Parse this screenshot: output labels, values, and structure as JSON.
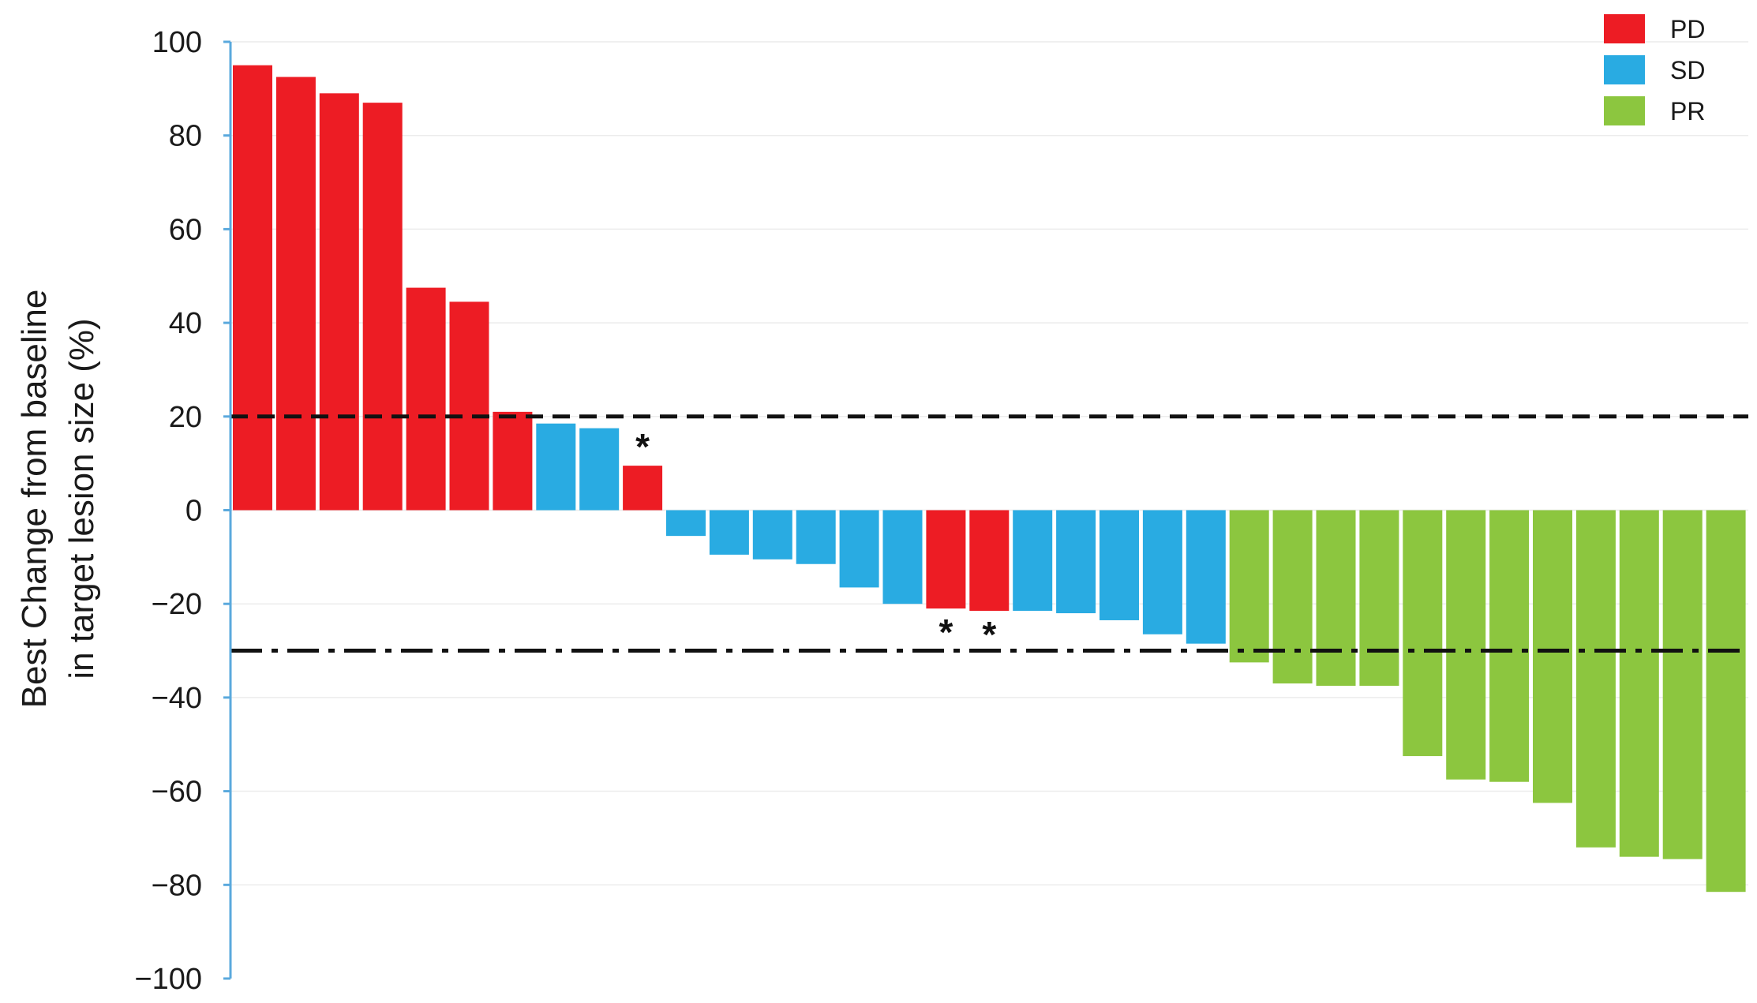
{
  "chart_data": {
    "type": "bar",
    "ylabel_lines": [
      "Best Change from baseline",
      "in target lesion size (%)"
    ],
    "ylim": [
      -100,
      100
    ],
    "yticks": [
      100,
      80,
      60,
      40,
      20,
      0,
      -20,
      -40,
      -60,
      -80,
      -100
    ],
    "ytick_labels": [
      "100",
      "80",
      "60",
      "40",
      "20",
      "0",
      "−20",
      "−40",
      "−60",
      "−80",
      "−100"
    ],
    "grid": true,
    "legend_position": "top-right",
    "legend": [
      {
        "key": "PD",
        "label": "PD",
        "color": "#ed1c24"
      },
      {
        "key": "SD",
        "label": "SD",
        "color": "#29abe2"
      },
      {
        "key": "PR",
        "label": "PR",
        "color": "#8cc63f"
      }
    ],
    "reference_lines": [
      {
        "value": 20,
        "style": "dashed"
      },
      {
        "value": -30,
        "style": "dash-dot"
      }
    ],
    "bars": [
      {
        "value": 95,
        "category": "PD"
      },
      {
        "value": 92.5,
        "category": "PD"
      },
      {
        "value": 89,
        "category": "PD"
      },
      {
        "value": 87,
        "category": "PD"
      },
      {
        "value": 47.5,
        "category": "PD"
      },
      {
        "value": 44.5,
        "category": "PD"
      },
      {
        "value": 21,
        "category": "PD"
      },
      {
        "value": 18.5,
        "category": "SD"
      },
      {
        "value": 17.5,
        "category": "SD"
      },
      {
        "value": 9.5,
        "category": "PD",
        "annotation": "*"
      },
      {
        "value": -5.5,
        "category": "SD"
      },
      {
        "value": -9.5,
        "category": "SD"
      },
      {
        "value": -10.5,
        "category": "SD"
      },
      {
        "value": -11.5,
        "category": "SD"
      },
      {
        "value": -16.5,
        "category": "SD"
      },
      {
        "value": -20,
        "category": "SD"
      },
      {
        "value": -21,
        "category": "PD",
        "annotation": "*"
      },
      {
        "value": -21.5,
        "category": "PD",
        "annotation": "*"
      },
      {
        "value": -21.5,
        "category": "SD"
      },
      {
        "value": -22,
        "category": "SD"
      },
      {
        "value": -23.5,
        "category": "SD"
      },
      {
        "value": -26.5,
        "category": "SD"
      },
      {
        "value": -28.5,
        "category": "SD"
      },
      {
        "value": -32.5,
        "category": "PR"
      },
      {
        "value": -37,
        "category": "PR"
      },
      {
        "value": -37.5,
        "category": "PR"
      },
      {
        "value": -37.5,
        "category": "PR"
      },
      {
        "value": -52.5,
        "category": "PR"
      },
      {
        "value": -57.5,
        "category": "PR"
      },
      {
        "value": -58,
        "category": "PR"
      },
      {
        "value": -62.5,
        "category": "PR"
      },
      {
        "value": -72,
        "category": "PR"
      },
      {
        "value": -74,
        "category": "PR"
      },
      {
        "value": -74.5,
        "category": "PR"
      },
      {
        "value": -81.5,
        "category": "PR"
      }
    ]
  }
}
